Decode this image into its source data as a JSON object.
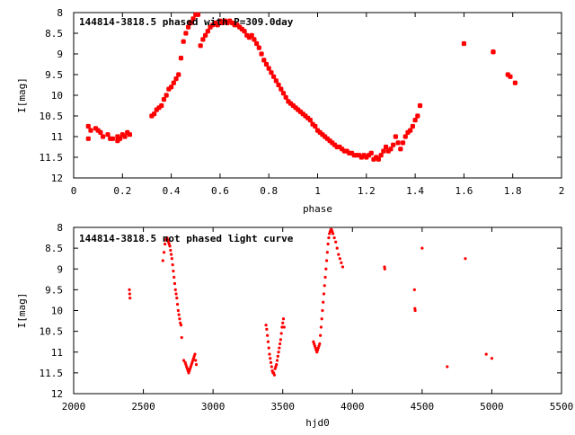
{
  "chart_data": [
    {
      "type": "scatter",
      "title": "144814-3818.5 phased with P=309.0day",
      "xlabel": "phase",
      "ylabel": "I[mag]",
      "xlim": [
        0,
        2
      ],
      "ylim": [
        12,
        8
      ],
      "y_inverted": true,
      "xticks": [
        0,
        0.2,
        0.4,
        0.6,
        0.8,
        1,
        1.2,
        1.4,
        1.6,
        1.8,
        2
      ],
      "xtick_labels": [
        "0",
        "0.2",
        "0.4",
        "0.6",
        "0.8",
        "1",
        "1.2",
        "1.4",
        "1.6",
        "1.8",
        "2"
      ],
      "yticks": [
        8,
        8.5,
        9,
        9.5,
        10,
        10.5,
        11,
        11.5,
        12
      ],
      "ytick_labels": [
        "8",
        "8.5",
        "9",
        "9.5",
        "10",
        "10.5",
        "11",
        "11.5",
        "12"
      ],
      "marker": "filled-circle",
      "color": "#ff0000",
      "grid": false,
      "series": [
        {
          "x": [
            0.06,
            0.06,
            0.07,
            0.09,
            0.1,
            0.11,
            0.12,
            0.14,
            0.15,
            0.16,
            0.18,
            0.18,
            0.19,
            0.2,
            0.21,
            0.22,
            0.23,
            0.32,
            0.33,
            0.34,
            0.35,
            0.36,
            0.37,
            0.38,
            0.39,
            0.4,
            0.41,
            0.42,
            0.43,
            0.44,
            0.45,
            0.46,
            0.47,
            0.48,
            0.49,
            0.5,
            0.51,
            0.52,
            0.53,
            0.54,
            0.55,
            0.56,
            0.57,
            0.58,
            0.59,
            0.6,
            0.61,
            0.62,
            0.63,
            0.64,
            0.65,
            0.66,
            0.67,
            0.68,
            0.69,
            0.7,
            0.71,
            0.72,
            0.73,
            0.74,
            0.75,
            0.76,
            0.77,
            0.78,
            0.79,
            0.8,
            0.81,
            0.82,
            0.83,
            0.84,
            0.85,
            0.86,
            0.87,
            0.88,
            0.89,
            0.9,
            0.91,
            0.92,
            0.93,
            0.94,
            0.95,
            0.96,
            0.97,
            0.98,
            0.99,
            1.0,
            1.01,
            1.02,
            1.03,
            1.04,
            1.05,
            1.06,
            1.07,
            1.08,
            1.09,
            1.1,
            1.11,
            1.12,
            1.13,
            1.14,
            1.15,
            1.16,
            1.17,
            1.18,
            1.19,
            1.2,
            1.21,
            1.22,
            1.23,
            1.24,
            1.25,
            1.26,
            1.27,
            1.28,
            1.29,
            1.3,
            1.31,
            1.32,
            1.33,
            1.34,
            1.35,
            1.36,
            1.37,
            1.38,
            1.39,
            1.4,
            1.41,
            1.42,
            1.6,
            1.72,
            1.72,
            1.78,
            1.79,
            1.81
          ],
          "y": [
            11.05,
            10.75,
            10.85,
            10.8,
            10.85,
            10.9,
            11.0,
            10.95,
            11.05,
            11.05,
            11.1,
            11.0,
            11.05,
            10.95,
            11.0,
            10.9,
            10.95,
            10.5,
            10.45,
            10.35,
            10.3,
            10.25,
            10.1,
            10.0,
            9.85,
            9.8,
            9.7,
            9.6,
            9.5,
            9.1,
            8.7,
            8.5,
            8.35,
            8.25,
            8.15,
            8.05,
            8.05,
            8.8,
            8.65,
            8.55,
            8.45,
            8.35,
            8.3,
            8.25,
            8.3,
            8.2,
            8.25,
            8.2,
            8.25,
            8.2,
            8.25,
            8.3,
            8.3,
            8.35,
            8.4,
            8.45,
            8.55,
            8.6,
            8.55,
            8.65,
            8.75,
            8.85,
            9.0,
            9.15,
            9.25,
            9.35,
            9.45,
            9.55,
            9.65,
            9.75,
            9.85,
            9.95,
            10.05,
            10.15,
            10.2,
            10.25,
            10.3,
            10.35,
            10.4,
            10.45,
            10.5,
            10.55,
            10.6,
            10.7,
            10.75,
            10.85,
            10.9,
            10.95,
            11.0,
            11.05,
            11.1,
            11.15,
            11.2,
            11.25,
            11.25,
            11.3,
            11.35,
            11.35,
            11.4,
            11.4,
            11.45,
            11.45,
            11.45,
            11.5,
            11.45,
            11.5,
            11.45,
            11.4,
            11.55,
            11.5,
            11.55,
            11.45,
            11.35,
            11.25,
            11.35,
            11.3,
            11.2,
            11.0,
            11.15,
            11.3,
            11.15,
            11.0,
            10.9,
            10.85,
            10.75,
            10.6,
            10.5,
            10.25,
            8.75,
            8.95,
            8.95,
            9.5,
            9.55,
            9.7
          ]
        }
      ]
    },
    {
      "type": "scatter",
      "title": "144814-3818.5 not phased light curve",
      "xlabel": "hjd0",
      "ylabel": "I[mag]",
      "xlim": [
        2000,
        5500
      ],
      "ylim": [
        12,
        8
      ],
      "y_inverted": true,
      "xticks": [
        2000,
        2500,
        3000,
        3500,
        4000,
        4500,
        5000,
        5500
      ],
      "xtick_labels": [
        "2000",
        "2500",
        "3000",
        "3500",
        "4000",
        "4500",
        "5000",
        "5500"
      ],
      "yticks": [
        8,
        8.5,
        9,
        9.5,
        10,
        10.5,
        11,
        11.5,
        12
      ],
      "ytick_labels": [
        "8",
        "8.5",
        "9",
        "9.5",
        "10",
        "10.5",
        "11",
        "11.5",
        "12"
      ],
      "marker": "small-dot",
      "color": "#ff0000",
      "grid": false,
      "series": [
        {
          "x": [
            2400,
            2402,
            2404,
            2640,
            2648,
            2655,
            2660,
            2665,
            2670,
            2675,
            2680,
            2685,
            2690,
            2695,
            2700,
            2705,
            2710,
            2715,
            2720,
            2725,
            2730,
            2735,
            2740,
            2745,
            2750,
            2755,
            2760,
            2765,
            2770,
            2775,
            2790,
            2800,
            2805,
            2810,
            2815,
            2820,
            2825,
            2830,
            2835,
            2840,
            2845,
            2850,
            2855,
            2860,
            2865,
            2870,
            2875,
            2880,
            3380,
            3385,
            3390,
            3395,
            3400,
            3405,
            3410,
            3415,
            3420,
            3425,
            3430,
            3435,
            3440,
            3445,
            3450,
            3455,
            3460,
            3465,
            3470,
            3475,
            3480,
            3485,
            3490,
            3495,
            3500,
            3505,
            3510,
            3720,
            3725,
            3730,
            3735,
            3740,
            3745,
            3750,
            3755,
            3760,
            3765,
            3770,
            3775,
            3780,
            3785,
            3790,
            3795,
            3800,
            3805,
            3810,
            3815,
            3820,
            3825,
            3830,
            3835,
            3840,
            3845,
            3850,
            3855,
            3860,
            3870,
            3880,
            3890,
            3900,
            3910,
            3920,
            3930,
            4230,
            4232,
            4445,
            4448,
            4450,
            4500,
            4680,
            4810,
            4960,
            5000
          ],
          "y": [
            9.5,
            9.6,
            9.7,
            8.8,
            8.6,
            8.4,
            8.3,
            8.3,
            8.25,
            8.3,
            8.35,
            8.4,
            8.45,
            8.55,
            8.65,
            8.75,
            8.9,
            9.05,
            9.2,
            9.35,
            9.5,
            9.6,
            9.7,
            9.85,
            10.0,
            10.1,
            10.2,
            10.3,
            10.35,
            10.65,
            11.2,
            11.25,
            11.3,
            11.35,
            11.4,
            11.45,
            11.5,
            11.45,
            11.4,
            11.35,
            11.3,
            11.25,
            11.2,
            11.15,
            11.1,
            11.05,
            11.2,
            11.3,
            10.35,
            10.45,
            10.6,
            10.75,
            10.9,
            11.05,
            11.15,
            11.25,
            11.35,
            11.45,
            11.5,
            11.5,
            11.55,
            11.4,
            11.35,
            11.3,
            11.2,
            11.1,
            11.0,
            10.9,
            10.8,
            10.7,
            10.55,
            10.4,
            10.3,
            10.2,
            10.4,
            10.75,
            10.8,
            10.85,
            10.9,
            10.95,
            11.0,
            10.95,
            10.9,
            10.85,
            10.8,
            10.6,
            10.4,
            10.2,
            10.0,
            9.8,
            9.6,
            9.4,
            9.2,
            9.0,
            8.8,
            8.6,
            8.4,
            8.25,
            8.15,
            8.1,
            8.05,
            8.05,
            8.1,
            8.15,
            8.25,
            8.35,
            8.5,
            8.65,
            8.75,
            8.85,
            8.95,
            8.95,
            9.0,
            9.5,
            9.95,
            10.0,
            8.5,
            11.35,
            8.75,
            11.05,
            11.15
          ]
        }
      ]
    }
  ]
}
